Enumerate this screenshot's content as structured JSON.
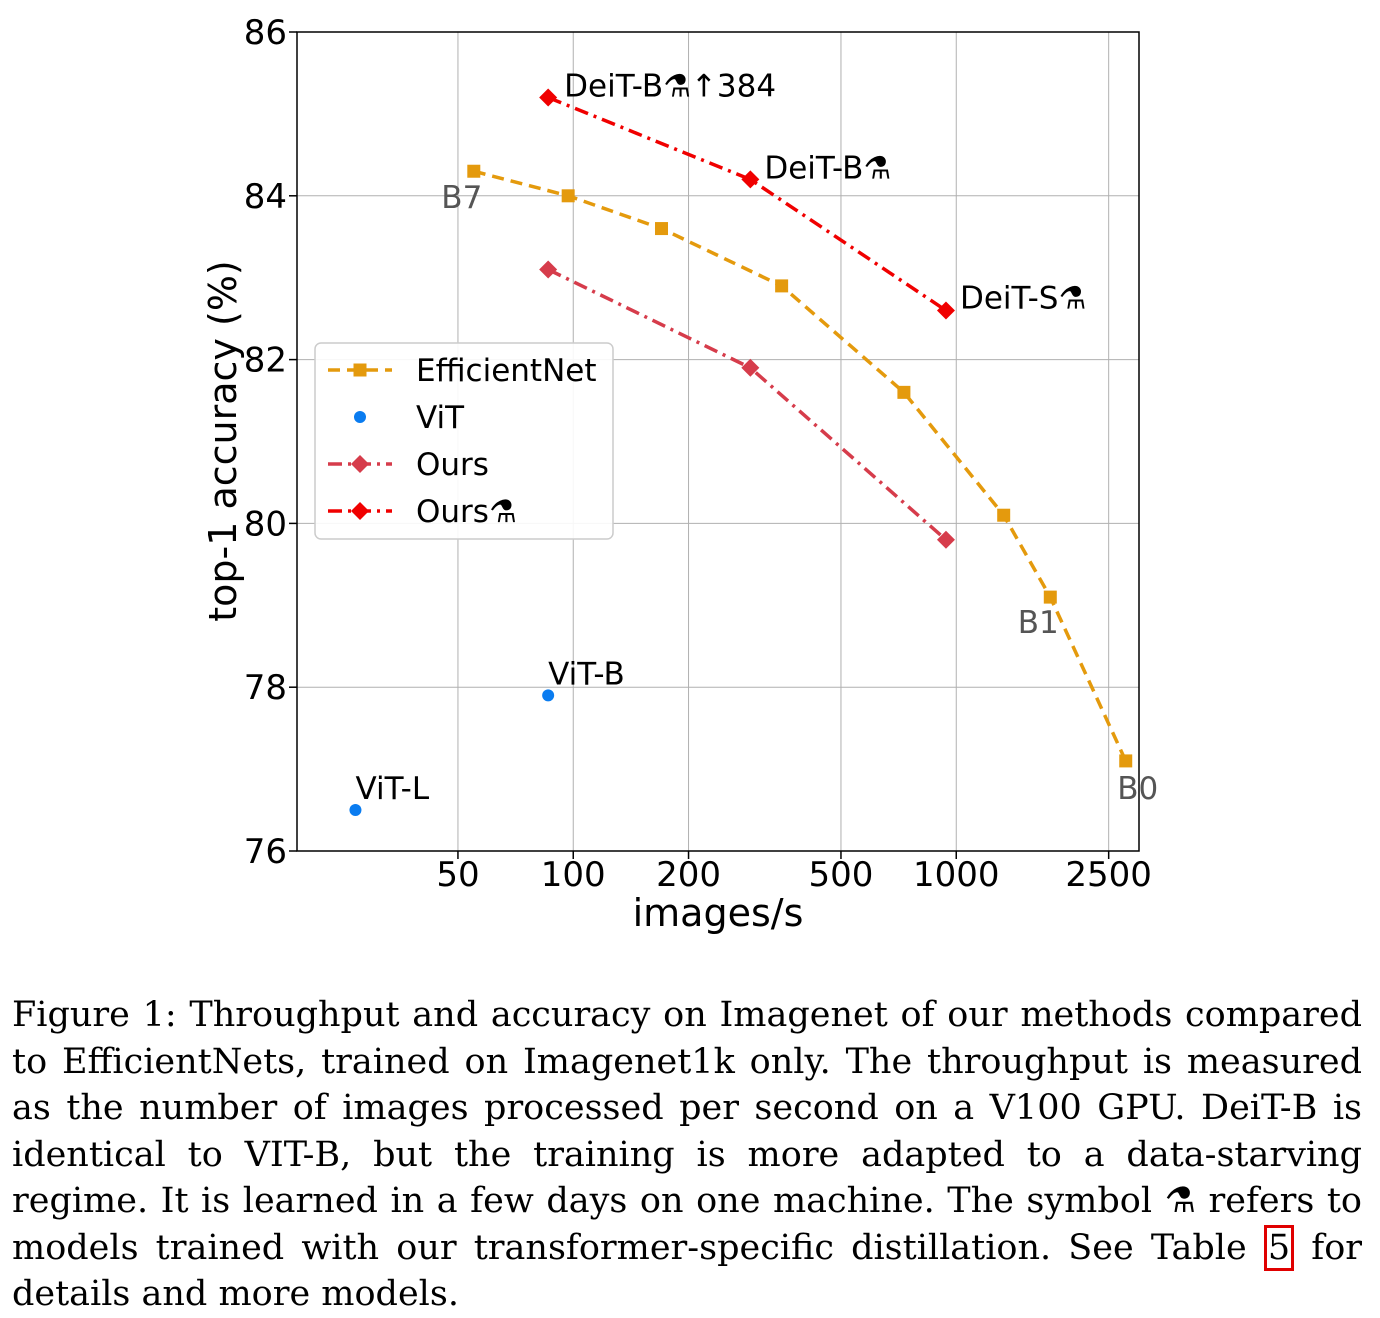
{
  "chart_data": {
    "type": "line",
    "xlabel": "images/s",
    "ylabel": "top-1 accuracy (%)",
    "xscale": "log",
    "xlim": [
      19,
      3000
    ],
    "ylim": [
      76,
      86
    ],
    "xticks": [
      50,
      100,
      200,
      500,
      1000,
      2500
    ],
    "yticks": [
      76,
      78,
      80,
      82,
      84,
      86
    ],
    "grid": true,
    "legend_position": "center-left",
    "series": [
      {
        "name": "EfficientNet",
        "color": "#e49a0d",
        "style": "dashed",
        "marker": "square",
        "points": [
          [
            55,
            84.3
          ],
          [
            97,
            84.0
          ],
          [
            170,
            83.6
          ],
          [
            350,
            82.9
          ],
          [
            730,
            81.6
          ],
          [
            1330,
            80.1
          ],
          [
            1760,
            79.1
          ],
          [
            2770,
            77.1
          ]
        ]
      },
      {
        "name": "ViT",
        "color": "#0a7cf0",
        "style": "none",
        "marker": "circle",
        "points": [
          [
            27,
            76.5
          ],
          [
            86,
            77.9
          ]
        ]
      },
      {
        "name": "Ours",
        "color": "#d63c4b",
        "style": "dashdot",
        "marker": "diamond",
        "points": [
          [
            86,
            83.1
          ],
          [
            290,
            81.9
          ],
          [
            940,
            79.8
          ]
        ]
      },
      {
        "name": "Ours⚗",
        "color": "#f00000",
        "style": "dashdot",
        "marker": "diamond",
        "points": [
          [
            86,
            85.2
          ],
          [
            290,
            84.2
          ],
          [
            940,
            82.6
          ]
        ]
      }
    ],
    "annotations": [
      {
        "text": "DeiT-B⚗↑384",
        "x": 86,
        "y": 85.2,
        "color": "#000000"
      },
      {
        "text": "DeiT-B⚗",
        "x": 290,
        "y": 84.2,
        "color": "#000000"
      },
      {
        "text": "DeiT-S⚗",
        "x": 940,
        "y": 82.6,
        "color": "#000000"
      },
      {
        "text": "ViT-B",
        "x": 86,
        "y": 77.9,
        "color": "#000000"
      },
      {
        "text": "ViT-L",
        "x": 27,
        "y": 76.5,
        "color": "#000000"
      },
      {
        "text": "B7",
        "x": 55,
        "y": 84.3,
        "color": "#555555"
      },
      {
        "text": "B1",
        "x": 1760,
        "y": 79.1,
        "color": "#555555"
      },
      {
        "text": "B0",
        "x": 2770,
        "y": 77.1,
        "color": "#555555"
      }
    ]
  },
  "caption": {
    "before_ref": "Figure 1: Throughput and accuracy on Imagenet of our methods compared to EfficientNets, trained on Imagenet1k only. The throughput is measured as the number of images processed per second on a V100 GPU. DeiT-B is identical to VIT-B, but the training is more adapted to a data-starving regime. It is learned in a few days on one machine. The symbol ⚗ refers to models trained with our transformer-specific distillation. See Table ",
    "ref": "5",
    "after_ref": " for details and more models."
  }
}
